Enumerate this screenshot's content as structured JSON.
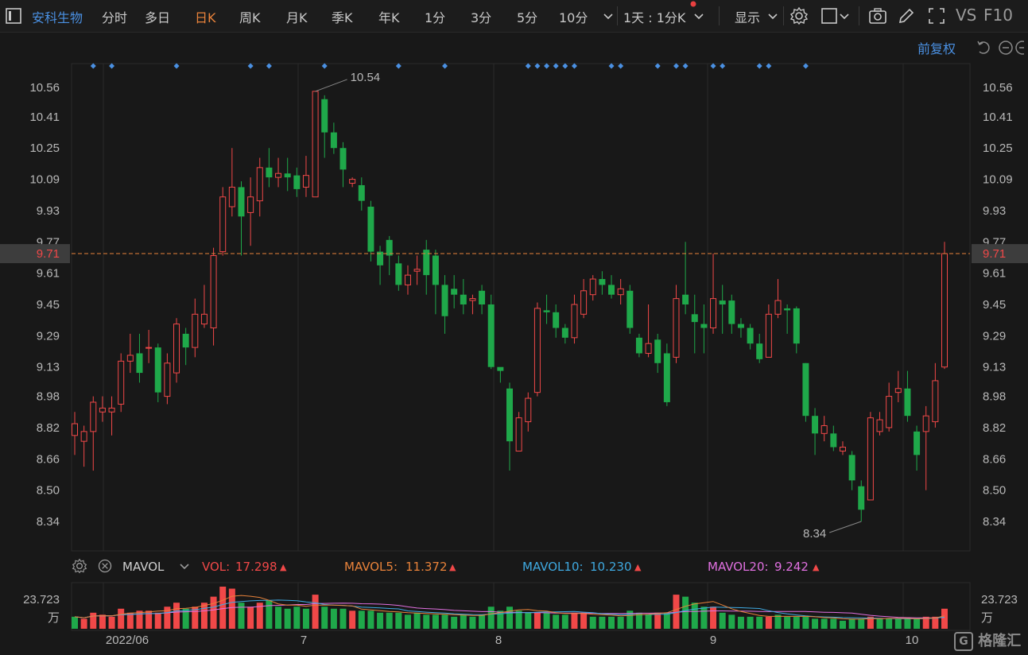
{
  "toolbar": {
    "stock_name": "安科生物",
    "tabs": [
      "分时",
      "多日",
      "日K",
      "周K",
      "月K",
      "季K",
      "年K",
      "1分",
      "3分",
      "5分",
      "10分"
    ],
    "active_tab": "日K",
    "period_select": "1天 : 1分K",
    "display_label": "显示",
    "vs_label": "VS",
    "f10_label": "F10"
  },
  "fq_label": "前复权",
  "price_axis": {
    "left_ticks": [
      "10.56",
      "10.41",
      "10.25",
      "10.09",
      "9.93",
      "9.77",
      "9.61",
      "9.45",
      "9.29",
      "9.13",
      "8.98",
      "8.82",
      "8.66",
      "8.50",
      "8.34"
    ],
    "right_ticks": [
      "10.56",
      "10.41",
      "10.25",
      "10.09",
      "9.93",
      "9.77",
      "9.61",
      "9.45",
      "9.29",
      "9.13",
      "8.98",
      "8.82",
      "8.66",
      "8.50",
      "8.34"
    ],
    "current_price": "9.71",
    "high_label": "10.54",
    "low_label": "8.34"
  },
  "colors": {
    "up": "#f04848",
    "down": "#1fa84a",
    "accent": "#e8823a",
    "link": "#4a90e2",
    "mavol5": "#e8823a",
    "mavol10": "#3fa9e0",
    "mavol20": "#e070e0"
  },
  "mavol": {
    "name": "MAVOL",
    "vol_label": "VOL:",
    "vol_value": "17.298",
    "mavol5_label": "MAVOL5:",
    "mavol5_value": "11.372",
    "mavol10_label": "MAVOL10:",
    "mavol10_value": "10.230",
    "mavol20_label": "MAVOL20:",
    "mavol20_value": "9.242"
  },
  "volume_axis": {
    "top_value": "23.723",
    "unit": "万"
  },
  "date_axis": [
    "2022/06",
    "7",
    "8",
    "9",
    "10"
  ],
  "watermark": "格隆汇",
  "chart_data": {
    "type": "candlestick",
    "candles": [
      [
        8.78,
        8.84,
        8.9,
        8.68
      ],
      [
        8.75,
        8.8,
        8.83,
        8.62
      ],
      [
        8.8,
        8.95,
        8.98,
        8.6
      ],
      [
        8.9,
        8.92,
        8.98,
        8.85
      ],
      [
        8.9,
        8.92,
        8.98,
        8.78
      ],
      [
        8.94,
        9.16,
        9.2,
        8.9
      ],
      [
        9.16,
        9.19,
        9.3,
        9.1
      ],
      [
        9.2,
        9.1,
        9.3,
        9.05
      ],
      [
        9.23,
        9.23,
        9.32,
        9.15
      ],
      [
        9.23,
        9.0,
        9.25,
        8.95
      ],
      [
        8.98,
        9.15,
        9.2,
        8.94
      ],
      [
        9.1,
        9.35,
        9.38,
        9.05
      ],
      [
        9.3,
        9.23,
        9.33,
        9.14
      ],
      [
        9.23,
        9.4,
        9.48,
        9.18
      ],
      [
        9.35,
        9.4,
        9.55,
        9.33
      ],
      [
        9.33,
        9.7,
        9.74,
        9.24
      ],
      [
        9.72,
        10.0,
        10.05,
        9.7
      ],
      [
        9.95,
        10.05,
        10.25,
        9.9
      ],
      [
        10.05,
        9.9,
        10.08,
        9.7
      ],
      [
        9.92,
        10.0,
        10.1,
        9.75
      ],
      [
        9.98,
        10.15,
        10.2,
        9.9
      ],
      [
        10.15,
        10.1,
        10.25,
        10.05
      ],
      [
        10.1,
        10.12,
        10.2,
        10.05
      ],
      [
        10.12,
        10.1,
        10.2,
        10.03
      ],
      [
        10.11,
        10.04,
        10.15,
        10.0
      ],
      [
        10.05,
        10.11,
        10.21,
        10.0
      ],
      [
        10.0,
        10.54,
        10.54,
        10.0
      ],
      [
        10.5,
        10.33,
        10.52,
        10.2
      ],
      [
        10.33,
        10.25,
        10.38,
        10.22
      ],
      [
        10.25,
        10.14,
        10.28,
        10.05
      ],
      [
        10.07,
        10.09,
        10.1,
        10.05
      ],
      [
        10.06,
        9.98,
        10.1,
        9.93
      ],
      [
        9.95,
        9.72,
        9.98,
        9.67
      ],
      [
        9.72,
        9.65,
        9.75,
        9.55
      ],
      [
        9.78,
        9.7,
        9.8,
        9.6
      ],
      [
        9.66,
        9.55,
        9.7,
        9.52
      ],
      [
        9.55,
        9.6,
        9.65,
        9.5
      ],
      [
        9.62,
        9.63,
        9.7,
        9.55
      ],
      [
        9.73,
        9.6,
        9.78,
        9.5
      ],
      [
        9.7,
        9.55,
        9.73,
        9.4
      ],
      [
        9.55,
        9.39,
        9.6,
        9.3
      ],
      [
        9.53,
        9.5,
        9.6,
        9.43
      ],
      [
        9.5,
        9.45,
        9.58,
        9.4
      ],
      [
        9.47,
        9.48,
        9.5,
        9.4
      ],
      [
        9.52,
        9.45,
        9.55,
        9.4
      ],
      [
        9.45,
        9.13,
        9.5,
        9.12
      ],
      [
        9.13,
        9.11,
        9.12,
        9.05
      ],
      [
        9.02,
        8.75,
        9.05,
        8.6
      ],
      [
        8.7,
        8.87,
        8.9,
        8.7
      ],
      [
        8.85,
        8.97,
        9.0,
        8.8
      ],
      [
        9.0,
        9.43,
        9.46,
        8.98
      ],
      [
        9.42,
        9.41,
        9.5,
        9.35
      ],
      [
        9.41,
        9.33,
        9.45,
        9.28
      ],
      [
        9.33,
        9.28,
        9.35,
        9.25
      ],
      [
        9.28,
        9.45,
        9.5,
        9.25
      ],
      [
        9.4,
        9.52,
        9.58,
        9.38
      ],
      [
        9.5,
        9.58,
        9.6,
        9.47
      ],
      [
        9.58,
        9.55,
        9.62,
        9.5
      ],
      [
        9.55,
        9.5,
        9.6,
        9.48
      ],
      [
        9.5,
        9.53,
        9.58,
        9.45
      ],
      [
        9.52,
        9.33,
        9.55,
        9.3
      ],
      [
        9.28,
        9.2,
        9.3,
        9.18
      ],
      [
        9.2,
        9.25,
        9.45,
        9.18
      ],
      [
        9.27,
        9.15,
        9.3,
        9.1
      ],
      [
        9.2,
        8.95,
        9.25,
        8.93
      ],
      [
        9.18,
        9.48,
        9.55,
        9.15
      ],
      [
        9.5,
        9.45,
        9.77,
        9.4
      ],
      [
        9.4,
        9.36,
        9.5,
        9.2
      ],
      [
        9.35,
        9.33,
        9.45,
        9.2
      ],
      [
        9.33,
        9.48,
        9.71,
        9.3
      ],
      [
        9.47,
        9.45,
        9.55,
        9.3
      ],
      [
        9.47,
        9.35,
        9.5,
        9.3
      ],
      [
        9.35,
        9.33,
        9.38,
        9.28
      ],
      [
        9.33,
        9.25,
        9.35,
        9.22
      ],
      [
        9.25,
        9.17,
        9.3,
        9.15
      ],
      [
        9.18,
        9.4,
        9.45,
        9.18
      ],
      [
        9.4,
        9.47,
        9.58,
        9.38
      ],
      [
        9.43,
        9.42,
        9.45,
        9.3
      ],
      [
        9.43,
        9.25,
        9.44,
        9.2
      ],
      [
        9.15,
        8.88,
        9.15,
        8.85
      ],
      [
        8.88,
        8.79,
        8.92,
        8.68
      ],
      [
        8.79,
        8.83,
        8.88,
        8.75
      ],
      [
        8.79,
        8.72,
        8.83,
        8.7
      ],
      [
        8.7,
        8.72,
        8.75,
        8.68
      ],
      [
        8.68,
        8.55,
        8.7,
        8.5
      ],
      [
        8.52,
        8.4,
        8.55,
        8.34
      ],
      [
        8.45,
        8.87,
        8.9,
        8.45
      ],
      [
        8.8,
        8.86,
        8.9,
        8.78
      ],
      [
        8.82,
        8.98,
        9.05,
        8.8
      ],
      [
        9.0,
        9.02,
        9.11,
        8.95
      ],
      [
        9.02,
        8.88,
        9.11,
        8.85
      ],
      [
        8.8,
        8.68,
        8.83,
        8.6
      ],
      [
        8.8,
        8.88,
        8.93,
        8.5
      ],
      [
        8.85,
        9.06,
        9.15,
        8.82
      ],
      [
        9.13,
        9.71,
        9.77,
        9.12
      ]
    ],
    "volumes": [
      [
        6,
        1
      ],
      [
        5,
        0
      ],
      [
        8,
        0
      ],
      [
        7,
        0
      ],
      [
        6,
        0
      ],
      [
        10,
        0
      ],
      [
        8,
        0
      ],
      [
        9,
        0
      ],
      [
        9,
        0
      ],
      [
        8,
        0
      ],
      [
        11,
        0
      ],
      [
        13,
        0
      ],
      [
        10,
        1
      ],
      [
        11,
        0
      ],
      [
        13,
        0
      ],
      [
        16,
        0
      ],
      [
        21,
        0
      ],
      [
        20,
        0
      ],
      [
        13,
        1
      ],
      [
        11,
        0
      ],
      [
        13,
        0
      ],
      [
        14,
        1
      ],
      [
        11,
        1
      ],
      [
        10,
        1
      ],
      [
        11,
        1
      ],
      [
        10,
        1
      ],
      [
        17,
        0
      ],
      [
        11,
        1
      ],
      [
        10,
        1
      ],
      [
        10,
        1
      ],
      [
        9,
        0
      ],
      [
        9,
        1
      ],
      [
        9,
        1
      ],
      [
        8,
        1
      ],
      [
        8,
        1
      ],
      [
        8,
        1
      ],
      [
        7,
        1
      ],
      [
        8,
        1
      ],
      [
        7,
        1
      ],
      [
        7,
        1
      ],
      [
        7,
        1
      ],
      [
        6,
        1
      ],
      [
        7,
        1
      ],
      [
        6,
        1
      ],
      [
        7,
        1
      ],
      [
        11,
        1
      ],
      [
        9,
        1
      ],
      [
        11,
        1
      ],
      [
        9,
        1
      ],
      [
        8,
        1
      ],
      [
        8,
        0
      ],
      [
        8,
        1
      ],
      [
        7,
        1
      ],
      [
        7,
        1
      ],
      [
        8,
        0
      ],
      [
        8,
        0
      ],
      [
        6,
        1
      ],
      [
        6,
        1
      ],
      [
        6,
        1
      ],
      [
        6,
        1
      ],
      [
        9,
        1
      ],
      [
        8,
        1
      ],
      [
        7,
        1
      ],
      [
        8,
        0
      ],
      [
        8,
        1
      ],
      [
        17,
        0
      ],
      [
        16,
        1
      ],
      [
        13,
        1
      ],
      [
        11,
        1
      ],
      [
        11,
        0
      ],
      [
        8,
        1
      ],
      [
        7,
        1
      ],
      [
        6,
        1
      ],
      [
        6,
        1
      ],
      [
        6,
        1
      ],
      [
        6,
        0
      ],
      [
        7,
        1
      ],
      [
        6,
        1
      ],
      [
        6,
        1
      ],
      [
        6,
        1
      ],
      [
        5,
        1
      ],
      [
        5,
        1
      ],
      [
        5,
        1
      ],
      [
        4,
        1
      ],
      [
        5,
        1
      ],
      [
        5,
        1
      ],
      [
        6,
        0
      ],
      [
        5,
        1
      ],
      [
        5,
        1
      ],
      [
        5,
        1
      ],
      [
        5,
        1
      ],
      [
        5,
        1
      ],
      [
        6,
        0
      ],
      [
        6,
        0
      ],
      [
        10,
        0
      ]
    ],
    "markers": [
      2,
      4,
      11,
      19,
      21,
      27,
      35,
      40,
      49,
      50,
      51,
      52,
      53,
      54,
      58,
      59,
      63,
      65,
      66,
      69,
      70,
      74,
      75,
      79
    ]
  }
}
